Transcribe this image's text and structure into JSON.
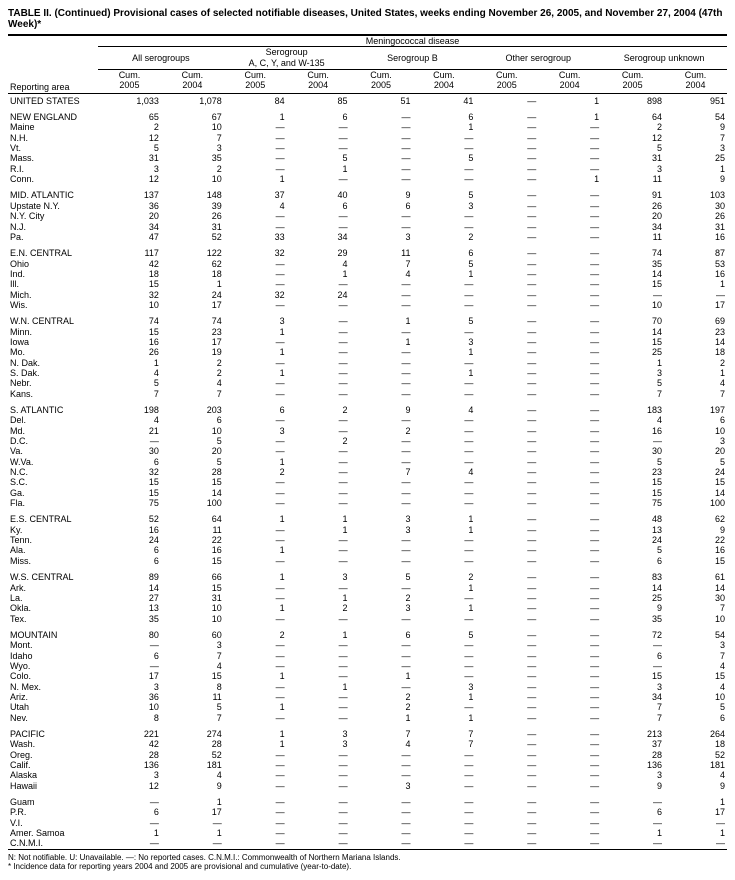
{
  "title": "TABLE II. (Continued) Provisional cases of selected notifiable diseases, United States, weeks ending November 26, 2005, and November 27, 2004 (47th Week)*",
  "disease_header": "Meningococcal disease",
  "group_headers": [
    "All serogroups",
    "Serogroup\nA, C, Y, and W-135",
    "Serogroup B",
    "Other serogroup",
    "Serogroup unknown"
  ],
  "col_headers": [
    "Cum.\n2005",
    "Cum.\n2004"
  ],
  "reporting_area_label": "Reporting area",
  "footnotes": [
    "N: Not notifiable.        U: Unavailable.        —: No reported cases.        C.N.M.I.: Commonwealth of Northern Mariana Islands.",
    "* Incidence data for reporting years 2004 and 2005 are provisional and cumulative (year-to-date)."
  ],
  "blocks": [
    [
      {
        "area": "UNITED STATES",
        "v": [
          "1,033",
          "1,078",
          "84",
          "85",
          "51",
          "41",
          "—",
          "1",
          "898",
          "951"
        ]
      }
    ],
    [
      {
        "area": "NEW ENGLAND",
        "v": [
          "65",
          "67",
          "1",
          "6",
          "—",
          "6",
          "—",
          "1",
          "64",
          "54"
        ]
      },
      {
        "area": "Maine",
        "v": [
          "2",
          "10",
          "—",
          "—",
          "—",
          "1",
          "—",
          "—",
          "2",
          "9"
        ]
      },
      {
        "area": "N.H.",
        "v": [
          "12",
          "7",
          "—",
          "—",
          "—",
          "—",
          "—",
          "—",
          "12",
          "7"
        ]
      },
      {
        "area": "Vt.",
        "v": [
          "5",
          "3",
          "—",
          "—",
          "—",
          "—",
          "—",
          "—",
          "5",
          "3"
        ]
      },
      {
        "area": "Mass.",
        "v": [
          "31",
          "35",
          "—",
          "5",
          "—",
          "5",
          "—",
          "—",
          "31",
          "25"
        ]
      },
      {
        "area": "R.I.",
        "v": [
          "3",
          "2",
          "—",
          "1",
          "—",
          "—",
          "—",
          "—",
          "3",
          "1"
        ]
      },
      {
        "area": "Conn.",
        "v": [
          "12",
          "10",
          "1",
          "—",
          "—",
          "—",
          "—",
          "1",
          "11",
          "9"
        ]
      }
    ],
    [
      {
        "area": "MID. ATLANTIC",
        "v": [
          "137",
          "148",
          "37",
          "40",
          "9",
          "5",
          "—",
          "—",
          "91",
          "103"
        ]
      },
      {
        "area": "Upstate N.Y.",
        "v": [
          "36",
          "39",
          "4",
          "6",
          "6",
          "3",
          "—",
          "—",
          "26",
          "30"
        ]
      },
      {
        "area": "N.Y. City",
        "v": [
          "20",
          "26",
          "—",
          "—",
          "—",
          "—",
          "—",
          "—",
          "20",
          "26"
        ]
      },
      {
        "area": "N.J.",
        "v": [
          "34",
          "31",
          "—",
          "—",
          "—",
          "—",
          "—",
          "—",
          "34",
          "31"
        ]
      },
      {
        "area": "Pa.",
        "v": [
          "47",
          "52",
          "33",
          "34",
          "3",
          "2",
          "—",
          "—",
          "11",
          "16"
        ]
      }
    ],
    [
      {
        "area": "E.N. CENTRAL",
        "v": [
          "117",
          "122",
          "32",
          "29",
          "11",
          "6",
          "—",
          "—",
          "74",
          "87"
        ]
      },
      {
        "area": "Ohio",
        "v": [
          "42",
          "62",
          "—",
          "4",
          "7",
          "5",
          "—",
          "—",
          "35",
          "53"
        ]
      },
      {
        "area": "Ind.",
        "v": [
          "18",
          "18",
          "—",
          "1",
          "4",
          "1",
          "—",
          "—",
          "14",
          "16"
        ]
      },
      {
        "area": "Ill.",
        "v": [
          "15",
          "1",
          "—",
          "—",
          "—",
          "—",
          "—",
          "—",
          "15",
          "1"
        ]
      },
      {
        "area": "Mich.",
        "v": [
          "32",
          "24",
          "32",
          "24",
          "—",
          "—",
          "—",
          "—",
          "—",
          "—"
        ]
      },
      {
        "area": "Wis.",
        "v": [
          "10",
          "17",
          "—",
          "—",
          "—",
          "—",
          "—",
          "—",
          "10",
          "17"
        ]
      }
    ],
    [
      {
        "area": "W.N. CENTRAL",
        "v": [
          "74",
          "74",
          "3",
          "—",
          "1",
          "5",
          "—",
          "—",
          "70",
          "69"
        ]
      },
      {
        "area": "Minn.",
        "v": [
          "15",
          "23",
          "1",
          "—",
          "—",
          "—",
          "—",
          "—",
          "14",
          "23"
        ]
      },
      {
        "area": "Iowa",
        "v": [
          "16",
          "17",
          "—",
          "—",
          "1",
          "3",
          "—",
          "—",
          "15",
          "14"
        ]
      },
      {
        "area": "Mo.",
        "v": [
          "26",
          "19",
          "1",
          "—",
          "—",
          "1",
          "—",
          "—",
          "25",
          "18"
        ]
      },
      {
        "area": "N. Dak.",
        "v": [
          "1",
          "2",
          "—",
          "—",
          "—",
          "—",
          "—",
          "—",
          "1",
          "2"
        ]
      },
      {
        "area": "S. Dak.",
        "v": [
          "4",
          "2",
          "1",
          "—",
          "—",
          "1",
          "—",
          "—",
          "3",
          "1"
        ]
      },
      {
        "area": "Nebr.",
        "v": [
          "5",
          "4",
          "—",
          "—",
          "—",
          "—",
          "—",
          "—",
          "5",
          "4"
        ]
      },
      {
        "area": "Kans.",
        "v": [
          "7",
          "7",
          "—",
          "—",
          "—",
          "—",
          "—",
          "—",
          "7",
          "7"
        ]
      }
    ],
    [
      {
        "area": "S. ATLANTIC",
        "v": [
          "198",
          "203",
          "6",
          "2",
          "9",
          "4",
          "—",
          "—",
          "183",
          "197"
        ]
      },
      {
        "area": "Del.",
        "v": [
          "4",
          "6",
          "—",
          "—",
          "—",
          "—",
          "—",
          "—",
          "4",
          "6"
        ]
      },
      {
        "area": "Md.",
        "v": [
          "21",
          "10",
          "3",
          "—",
          "2",
          "—",
          "—",
          "—",
          "16",
          "10"
        ]
      },
      {
        "area": "D.C.",
        "v": [
          "—",
          "5",
          "—",
          "2",
          "—",
          "—",
          "—",
          "—",
          "—",
          "3"
        ]
      },
      {
        "area": "Va.",
        "v": [
          "30",
          "20",
          "—",
          "—",
          "—",
          "—",
          "—",
          "—",
          "30",
          "20"
        ]
      },
      {
        "area": "W.Va.",
        "v": [
          "6",
          "5",
          "1",
          "—",
          "—",
          "—",
          "—",
          "—",
          "5",
          "5"
        ]
      },
      {
        "area": "N.C.",
        "v": [
          "32",
          "28",
          "2",
          "—",
          "7",
          "4",
          "—",
          "—",
          "23",
          "24"
        ]
      },
      {
        "area": "S.C.",
        "v": [
          "15",
          "15",
          "—",
          "—",
          "—",
          "—",
          "—",
          "—",
          "15",
          "15"
        ]
      },
      {
        "area": "Ga.",
        "v": [
          "15",
          "14",
          "—",
          "—",
          "—",
          "—",
          "—",
          "—",
          "15",
          "14"
        ]
      },
      {
        "area": "Fla.",
        "v": [
          "75",
          "100",
          "—",
          "—",
          "—",
          "—",
          "—",
          "—",
          "75",
          "100"
        ]
      }
    ],
    [
      {
        "area": "E.S. CENTRAL",
        "v": [
          "52",
          "64",
          "1",
          "1",
          "3",
          "1",
          "—",
          "—",
          "48",
          "62"
        ]
      },
      {
        "area": "Ky.",
        "v": [
          "16",
          "11",
          "—",
          "1",
          "3",
          "1",
          "—",
          "—",
          "13",
          "9"
        ]
      },
      {
        "area": "Tenn.",
        "v": [
          "24",
          "22",
          "—",
          "—",
          "—",
          "—",
          "—",
          "—",
          "24",
          "22"
        ]
      },
      {
        "area": "Ala.",
        "v": [
          "6",
          "16",
          "1",
          "—",
          "—",
          "—",
          "—",
          "—",
          "5",
          "16"
        ]
      },
      {
        "area": "Miss.",
        "v": [
          "6",
          "15",
          "—",
          "—",
          "—",
          "—",
          "—",
          "—",
          "6",
          "15"
        ]
      }
    ],
    [
      {
        "area": "W.S. CENTRAL",
        "v": [
          "89",
          "66",
          "1",
          "3",
          "5",
          "2",
          "—",
          "—",
          "83",
          "61"
        ]
      },
      {
        "area": "Ark.",
        "v": [
          "14",
          "15",
          "—",
          "—",
          "—",
          "1",
          "—",
          "—",
          "14",
          "14"
        ]
      },
      {
        "area": "La.",
        "v": [
          "27",
          "31",
          "—",
          "1",
          "2",
          "—",
          "—",
          "—",
          "25",
          "30"
        ]
      },
      {
        "area": "Okla.",
        "v": [
          "13",
          "10",
          "1",
          "2",
          "3",
          "1",
          "—",
          "—",
          "9",
          "7"
        ]
      },
      {
        "area": "Tex.",
        "v": [
          "35",
          "10",
          "—",
          "—",
          "—",
          "—",
          "—",
          "—",
          "35",
          "10"
        ]
      }
    ],
    [
      {
        "area": "MOUNTAIN",
        "v": [
          "80",
          "60",
          "2",
          "1",
          "6",
          "5",
          "—",
          "—",
          "72",
          "54"
        ]
      },
      {
        "area": "Mont.",
        "v": [
          "—",
          "3",
          "—",
          "—",
          "—",
          "—",
          "—",
          "—",
          "—",
          "3"
        ]
      },
      {
        "area": "Idaho",
        "v": [
          "6",
          "7",
          "—",
          "—",
          "—",
          "—",
          "—",
          "—",
          "6",
          "7"
        ]
      },
      {
        "area": "Wyo.",
        "v": [
          "—",
          "4",
          "—",
          "—",
          "—",
          "—",
          "—",
          "—",
          "—",
          "4"
        ]
      },
      {
        "area": "Colo.",
        "v": [
          "17",
          "15",
          "1",
          "—",
          "1",
          "—",
          "—",
          "—",
          "15",
          "15"
        ]
      },
      {
        "area": "N. Mex.",
        "v": [
          "3",
          "8",
          "—",
          "1",
          "—",
          "3",
          "—",
          "—",
          "3",
          "4"
        ]
      },
      {
        "area": "Ariz.",
        "v": [
          "36",
          "11",
          "—",
          "—",
          "2",
          "1",
          "—",
          "—",
          "34",
          "10"
        ]
      },
      {
        "area": "Utah",
        "v": [
          "10",
          "5",
          "1",
          "—",
          "2",
          "—",
          "—",
          "—",
          "7",
          "5"
        ]
      },
      {
        "area": "Nev.",
        "v": [
          "8",
          "7",
          "—",
          "—",
          "1",
          "1",
          "—",
          "—",
          "7",
          "6"
        ]
      }
    ],
    [
      {
        "area": "PACIFIC",
        "v": [
          "221",
          "274",
          "1",
          "3",
          "7",
          "7",
          "—",
          "—",
          "213",
          "264"
        ]
      },
      {
        "area": "Wash.",
        "v": [
          "42",
          "28",
          "1",
          "3",
          "4",
          "7",
          "—",
          "—",
          "37",
          "18"
        ]
      },
      {
        "area": "Oreg.",
        "v": [
          "28",
          "52",
          "—",
          "—",
          "—",
          "—",
          "—",
          "—",
          "28",
          "52"
        ]
      },
      {
        "area": "Calif.",
        "v": [
          "136",
          "181",
          "—",
          "—",
          "—",
          "—",
          "—",
          "—",
          "136",
          "181"
        ]
      },
      {
        "area": "Alaska",
        "v": [
          "3",
          "4",
          "—",
          "—",
          "—",
          "—",
          "—",
          "—",
          "3",
          "4"
        ]
      },
      {
        "area": "Hawaii",
        "v": [
          "12",
          "9",
          "—",
          "—",
          "3",
          "—",
          "—",
          "—",
          "9",
          "9"
        ]
      }
    ],
    [
      {
        "area": "Guam",
        "v": [
          "—",
          "1",
          "—",
          "—",
          "—",
          "—",
          "—",
          "—",
          "—",
          "1"
        ]
      },
      {
        "area": "P.R.",
        "v": [
          "6",
          "17",
          "—",
          "—",
          "—",
          "—",
          "—",
          "—",
          "6",
          "17"
        ]
      },
      {
        "area": "V.I.",
        "v": [
          "—",
          "—",
          "—",
          "—",
          "—",
          "—",
          "—",
          "—",
          "—",
          "—"
        ]
      },
      {
        "area": "Amer. Samoa",
        "v": [
          "1",
          "1",
          "—",
          "—",
          "—",
          "—",
          "—",
          "—",
          "1",
          "1"
        ]
      },
      {
        "area": "C.N.M.I.",
        "v": [
          "—",
          "—",
          "—",
          "—",
          "—",
          "—",
          "—",
          "—",
          "—",
          "—"
        ]
      }
    ]
  ]
}
